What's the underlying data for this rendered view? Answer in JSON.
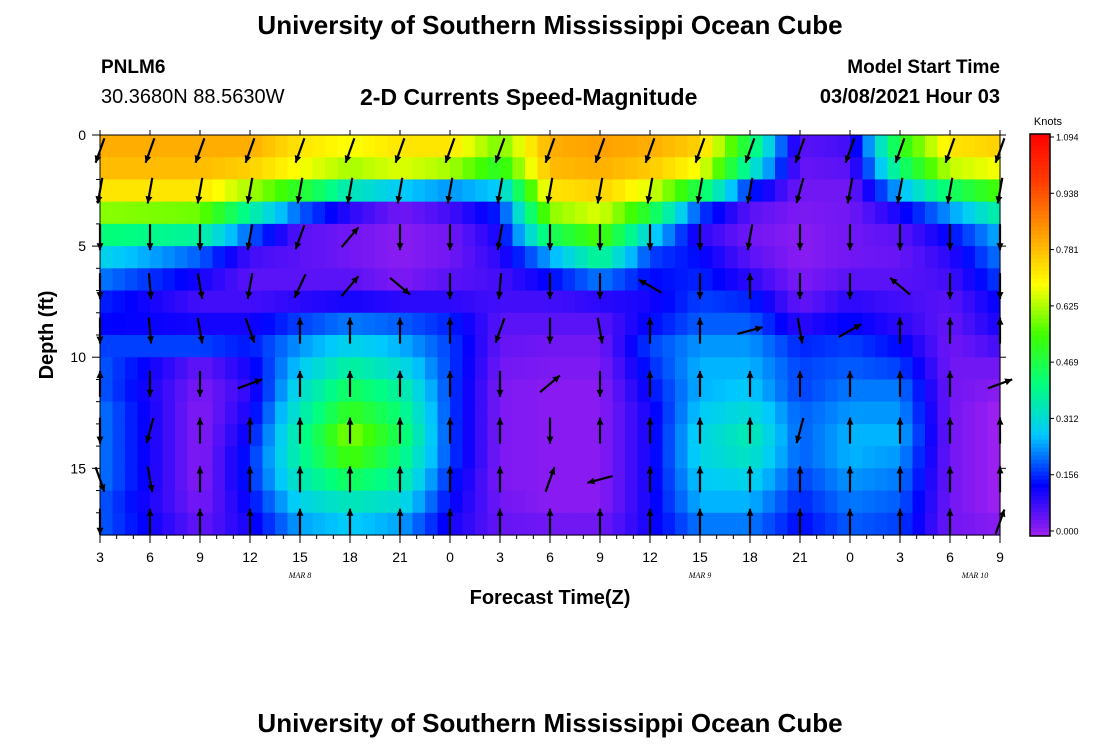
{
  "header": {
    "title": "University of Southern Mississippi Ocean Cube",
    "station_id": "PNLM6",
    "station_coords": "30.3680N 88.5630W",
    "subtitle": "2-D Currents Speed-Magnitude",
    "model_label": "Model Start Time",
    "model_time": "03/08/2021 Hour 03"
  },
  "footer": {
    "title": "University of Southern Mississippi Ocean Cube"
  },
  "chart_data": {
    "type": "heatmap",
    "title": "2-D Currents Speed-Magnitude",
    "xlabel": "Forecast Time(Z)",
    "ylabel": "Depth (ft)",
    "x_tick_labels": [
      "3",
      "6",
      "9",
      "12",
      "15",
      "18",
      "21",
      "0",
      "3",
      "6",
      "9",
      "12",
      "15",
      "18",
      "21",
      "0",
      "3",
      "6",
      "9"
    ],
    "x_range_hours": [
      0,
      54
    ],
    "date_labels": [
      {
        "text": "MAR 8",
        "hour": 12
      },
      {
        "text": "MAR 9",
        "hour": 36
      },
      {
        "text": "MAR 10",
        "hour": 52.5
      }
    ],
    "y_ticks": [
      0,
      5,
      10,
      15
    ],
    "y_range": [
      0,
      18
    ],
    "y_inverted": true,
    "colorbar": {
      "unit": "Knots",
      "ticks": [
        "1.094",
        "0.938",
        "0.781",
        "0.625",
        "0.469",
        "0.312",
        "0.156",
        "0.000"
      ],
      "range": [
        0,
        1.094
      ],
      "colors": [
        "#a020f0",
        "#0000ff",
        "#00c8ff",
        "#00ff80",
        "#40ff00",
        "#ffff00",
        "#ffa000",
        "#ff4000",
        "#ff0000"
      ]
    },
    "depth_rows": [
      0.5,
      1.5,
      2.5,
      3.5,
      4.5,
      5.5,
      6.5,
      7.5,
      8.5,
      9.5,
      10.5,
      11.5,
      12.5,
      13.5,
      14.5,
      15.5,
      16.5,
      17.5
    ],
    "speed_profiles": [
      {
        "hour": 0,
        "knots": [
          0.8,
          0.78,
          0.72,
          0.6,
          0.42,
          0.3,
          0.22,
          0.16,
          0.14,
          0.18,
          0.2,
          0.2,
          0.22,
          0.22,
          0.22,
          0.22,
          0.2,
          0.2
        ]
      },
      {
        "hour": 6,
        "knots": [
          0.8,
          0.78,
          0.72,
          0.58,
          0.38,
          0.2,
          0.12,
          0.08,
          0.12,
          0.18,
          0.05,
          0.03,
          0.02,
          0.02,
          0.02,
          0.02,
          0.03,
          0.05
        ]
      },
      {
        "hour": 9,
        "knots": [
          0.8,
          0.75,
          0.62,
          0.38,
          0.2,
          0.08,
          0.06,
          0.08,
          0.12,
          0.15,
          0.12,
          0.1,
          0.12,
          0.14,
          0.16,
          0.16,
          0.14,
          0.12
        ]
      },
      {
        "hour": 12,
        "knots": [
          0.72,
          0.68,
          0.5,
          0.2,
          0.06,
          0.06,
          0.06,
          0.1,
          0.18,
          0.24,
          0.28,
          0.32,
          0.35,
          0.38,
          0.38,
          0.35,
          0.3,
          0.25
        ]
      },
      {
        "hour": 15,
        "knots": [
          0.68,
          0.62,
          0.35,
          0.1,
          0.04,
          0.04,
          0.06,
          0.12,
          0.22,
          0.3,
          0.38,
          0.45,
          0.52,
          0.6,
          0.55,
          0.45,
          0.35,
          0.28
        ]
      },
      {
        "hour": 18,
        "knots": [
          0.72,
          0.66,
          0.28,
          0.04,
          0.02,
          0.02,
          0.03,
          0.1,
          0.2,
          0.26,
          0.32,
          0.38,
          0.42,
          0.45,
          0.42,
          0.38,
          0.32,
          0.25
        ]
      },
      {
        "hour": 21,
        "knots": [
          0.72,
          0.62,
          0.24,
          0.08,
          0.04,
          0.04,
          0.06,
          0.1,
          0.16,
          0.18,
          0.18,
          0.18,
          0.18,
          0.18,
          0.18,
          0.16,
          0.14,
          0.12
        ]
      },
      {
        "hour": 24,
        "knots": [
          0.58,
          0.5,
          0.28,
          0.16,
          0.12,
          0.1,
          0.08,
          0.08,
          0.06,
          0.05,
          0.04,
          0.03,
          0.03,
          0.03,
          0.03,
          0.03,
          0.04,
          0.05
        ]
      },
      {
        "hour": 27,
        "knots": [
          0.8,
          0.78,
          0.72,
          0.6,
          0.45,
          0.25,
          0.14,
          0.08,
          0.06,
          0.04,
          0.03,
          0.02,
          0.02,
          0.02,
          0.02,
          0.02,
          0.02,
          0.04
        ]
      },
      {
        "hour": 30,
        "knots": [
          0.82,
          0.8,
          0.75,
          0.66,
          0.55,
          0.4,
          0.22,
          0.1,
          0.06,
          0.04,
          0.03,
          0.02,
          0.02,
          0.02,
          0.02,
          0.02,
          0.02,
          0.04
        ]
      },
      {
        "hour": 33,
        "knots": [
          0.8,
          0.76,
          0.66,
          0.48,
          0.3,
          0.18,
          0.14,
          0.12,
          0.14,
          0.18,
          0.16,
          0.14,
          0.12,
          0.12,
          0.12,
          0.12,
          0.12,
          0.12
        ]
      },
      {
        "hour": 36,
        "knots": [
          0.75,
          0.68,
          0.46,
          0.18,
          0.1,
          0.14,
          0.16,
          0.18,
          0.2,
          0.24,
          0.26,
          0.26,
          0.28,
          0.3,
          0.3,
          0.28,
          0.26,
          0.22
        ]
      },
      {
        "hour": 39,
        "knots": [
          0.45,
          0.36,
          0.16,
          0.06,
          0.04,
          0.06,
          0.1,
          0.16,
          0.2,
          0.24,
          0.26,
          0.28,
          0.32,
          0.36,
          0.34,
          0.3,
          0.26,
          0.22
        ]
      },
      {
        "hour": 42,
        "knots": [
          0.06,
          0.05,
          0.04,
          0.03,
          0.02,
          0.02,
          0.03,
          0.05,
          0.1,
          0.16,
          0.18,
          0.18,
          0.2,
          0.2,
          0.2,
          0.18,
          0.16,
          0.14
        ]
      },
      {
        "hour": 45,
        "knots": [
          0.08,
          0.06,
          0.04,
          0.04,
          0.04,
          0.04,
          0.06,
          0.1,
          0.14,
          0.18,
          0.2,
          0.22,
          0.24,
          0.26,
          0.26,
          0.24,
          0.22,
          0.2
        ]
      },
      {
        "hour": 48,
        "knots": [
          0.5,
          0.42,
          0.26,
          0.12,
          0.06,
          0.05,
          0.06,
          0.08,
          0.1,
          0.14,
          0.18,
          0.22,
          0.24,
          0.26,
          0.24,
          0.22,
          0.2,
          0.18
        ]
      },
      {
        "hour": 51,
        "knots": [
          0.72,
          0.64,
          0.44,
          0.24,
          0.14,
          0.1,
          0.08,
          0.06,
          0.05,
          0.04,
          0.04,
          0.04,
          0.04,
          0.04,
          0.04,
          0.04,
          0.04,
          0.04
        ]
      },
      {
        "hour": 54,
        "knots": [
          0.75,
          0.68,
          0.55,
          0.38,
          0.26,
          0.22,
          0.18,
          0.14,
          0.12,
          0.08,
          0.04,
          0.02,
          0.0,
          0.0,
          0.0,
          0.0,
          0.0,
          0.02
        ]
      }
    ],
    "vector_depths": [
      0.7,
      2.5,
      4.6,
      6.8,
      8.8,
      11.2,
      13.3,
      15.5,
      17.4
    ],
    "vector_hours": [
      0,
      3,
      6,
      9,
      12,
      15,
      18,
      21,
      24,
      27,
      30,
      33,
      36,
      39,
      42,
      45,
      48,
      51,
      54
    ],
    "vector_directions_deg": [
      [
        200,
        200,
        200,
        200,
        200,
        200,
        200,
        200,
        200,
        200,
        200,
        200,
        200,
        200,
        200,
        200,
        200,
        200,
        200
      ],
      [
        190,
        190,
        190,
        190,
        190,
        190,
        190,
        190,
        190,
        190,
        190,
        190,
        190,
        190,
        195,
        190,
        190,
        190,
        190
      ],
      [
        180,
        180,
        180,
        190,
        200,
        40,
        180,
        180,
        190,
        180,
        180,
        180,
        180,
        190,
        180,
        180,
        180,
        180,
        180
      ],
      [
        180,
        175,
        170,
        190,
        205,
        40,
        130,
        180,
        185,
        180,
        180,
        300,
        180,
        0,
        180,
        180,
        310,
        180,
        180
      ],
      [
        180,
        175,
        170,
        160,
        0,
        0,
        0,
        0,
        200,
        180,
        170,
        0,
        0,
        75,
        170,
        60,
        0,
        0,
        0
      ],
      [
        0,
        180,
        180,
        70,
        0,
        0,
        0,
        0,
        180,
        50,
        180,
        0,
        0,
        0,
        0,
        0,
        0,
        0,
        70
      ],
      [
        180,
        195,
        0,
        0,
        0,
        0,
        0,
        0,
        0,
        180,
        0,
        0,
        0,
        0,
        195,
        0,
        0,
        0,
        0
      ],
      [
        160,
        170,
        0,
        0,
        0,
        0,
        0,
        0,
        0,
        20,
        255,
        0,
        0,
        0,
        0,
        0,
        0,
        0,
        0
      ],
      [
        180,
        0,
        0,
        0,
        0,
        0,
        0,
        0,
        0,
        0,
        0,
        0,
        0,
        0,
        0,
        0,
        0,
        0,
        20
      ]
    ]
  }
}
